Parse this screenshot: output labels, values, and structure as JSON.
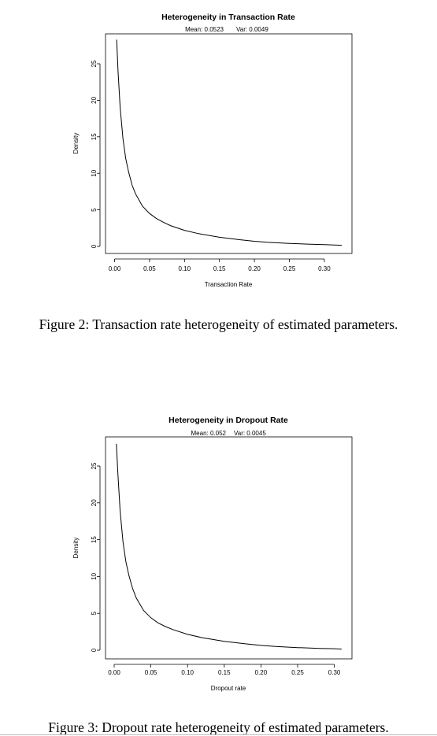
{
  "figures": [
    {
      "caption": "Figure 2: Transaction rate heterogeneity of estimated parameters.",
      "chart_data": {
        "type": "line",
        "title": "Heterogeneity in Transaction Rate",
        "subtitle_mean": "Mean: 0.0523",
        "subtitle_var": "Var: 0.0049",
        "xlabel": "Transaction Rate",
        "ylabel": "Density",
        "xlim": [
          0,
          0.33
        ],
        "ylim": [
          0,
          28.5
        ],
        "xticks": [
          0.0,
          0.05,
          0.1,
          0.15,
          0.2,
          0.25,
          0.3
        ],
        "xtick_labels": [
          "0.00",
          "0.05",
          "0.10",
          "0.15",
          "0.20",
          "0.25",
          "0.30"
        ],
        "yticks": [
          0,
          5,
          10,
          15,
          20,
          25
        ],
        "ytick_labels": [
          "0",
          "5",
          "10",
          "15",
          "20",
          "25"
        ],
        "grid": false,
        "series": [
          {
            "x": [
              0.003,
              0.005,
              0.008,
              0.012,
              0.016,
              0.02,
              0.025,
              0.03,
              0.04,
              0.05,
              0.06,
              0.07,
              0.08,
              0.1,
              0.12,
              0.15,
              0.18,
              0.2,
              0.22,
              0.25,
              0.28,
              0.3,
              0.325
            ],
            "y": [
              28.3,
              24.0,
              19.0,
              14.7,
              12.0,
              10.2,
              8.4,
              7.2,
              5.5,
              4.5,
              3.8,
              3.3,
              2.85,
              2.2,
              1.75,
              1.25,
              0.9,
              0.7,
              0.55,
              0.4,
              0.3,
              0.25,
              0.15
            ]
          }
        ]
      }
    },
    {
      "caption": "Figure 3: Dropout rate heterogeneity of estimated parameters.",
      "chart_data": {
        "type": "line",
        "title": "Heterogeneity in Dropout Rate",
        "subtitle_mean": "Mean: 0.052",
        "subtitle_var": "Var: 0.0045",
        "xlabel": "Dropout rate",
        "ylabel": "Density",
        "xlim": [
          0,
          0.31
        ],
        "ylim": [
          0,
          28.5
        ],
        "xticks": [
          0.0,
          0.05,
          0.1,
          0.15,
          0.2,
          0.25,
          0.3
        ],
        "xtick_labels": [
          "0.00",
          "0.05",
          "0.10",
          "0.15",
          "0.20",
          "0.25",
          "0.30"
        ],
        "yticks": [
          0,
          5,
          10,
          15,
          20,
          25
        ],
        "ytick_labels": [
          "0",
          "5",
          "10",
          "15",
          "20",
          "25"
        ],
        "grid": false,
        "series": [
          {
            "x": [
              0.003,
              0.005,
              0.008,
              0.012,
              0.016,
              0.02,
              0.025,
              0.03,
              0.04,
              0.05,
              0.06,
              0.07,
              0.08,
              0.1,
              0.12,
              0.15,
              0.18,
              0.2,
              0.22,
              0.25,
              0.28,
              0.3,
              0.31
            ],
            "y": [
              28.0,
              24.0,
              19.0,
              14.7,
              12.0,
              10.2,
              8.4,
              7.1,
              5.4,
              4.4,
              3.7,
              3.2,
              2.8,
              2.15,
              1.7,
              1.2,
              0.85,
              0.65,
              0.5,
              0.35,
              0.25,
              0.2,
              0.15
            ]
          }
        ]
      }
    }
  ]
}
